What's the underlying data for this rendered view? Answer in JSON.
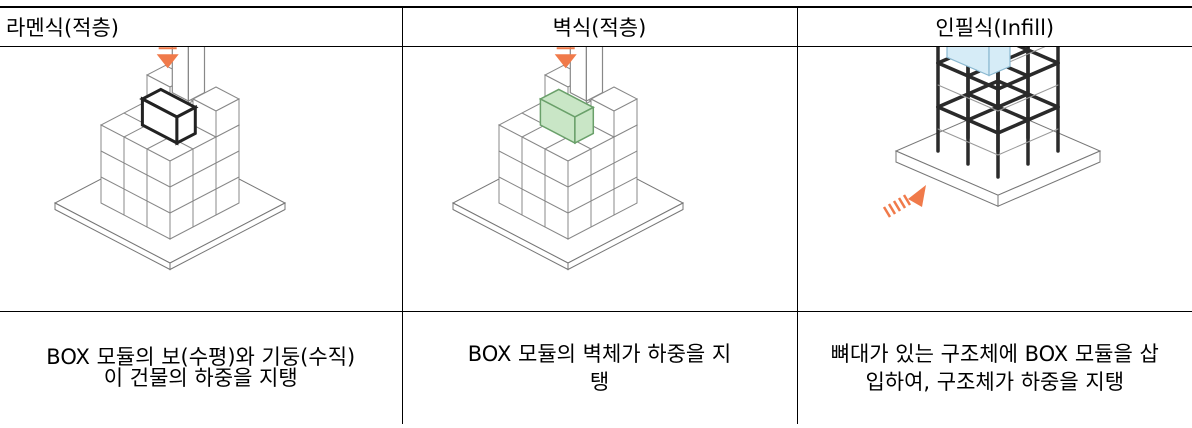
{
  "table": {
    "headers": [
      "라멘식(적층)",
      "벽식(적층)",
      "인필식(Infill)"
    ],
    "rows": [
      [
        "BOX 모듈의 보(수평)와 기둥(수직)이 건물의 하중을 지탱",
        "BOX 모듈의 벽체가 하중을 지탱",
        "뼈대가 있는 구조체에 BOX 모듈을 삽입하여, 구조체가 하중을 지탱"
      ]
    ]
  }
}
